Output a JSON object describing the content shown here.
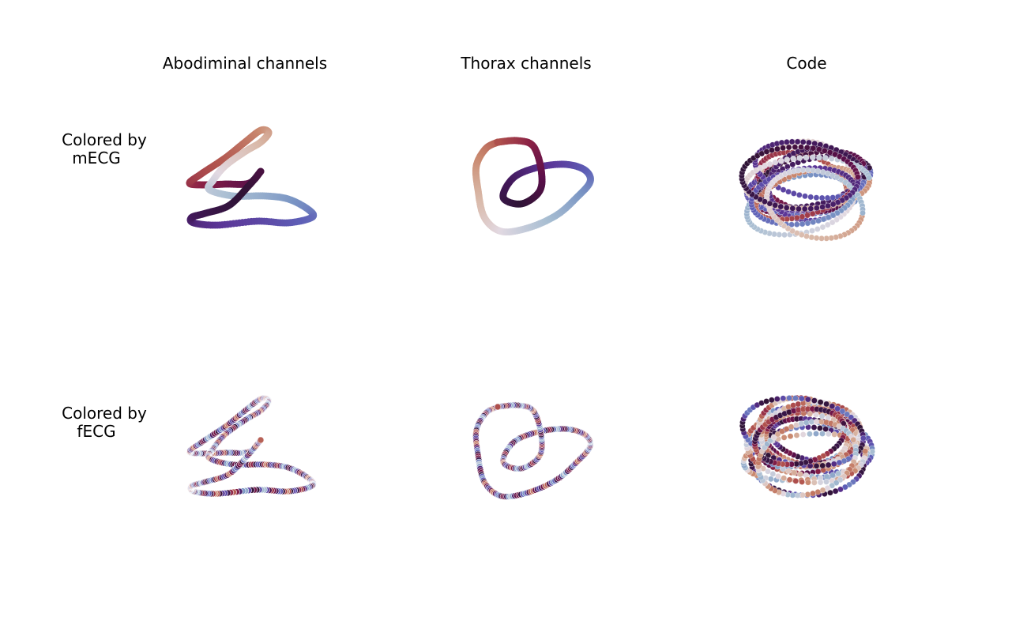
{
  "column_titles": [
    "Abodiminal channels",
    "Thorax channels",
    "Code"
  ],
  "row_labels": [
    {
      "line1": "Colored by",
      "line2": "mECG"
    },
    {
      "line1": "Colored by",
      "line2": "fECG"
    }
  ],
  "colormap": {
    "name": "twilight",
    "stops": [
      "#e2d9e2",
      "#a8bed2",
      "#7a95c4",
      "#5e5fb7",
      "#5b3596",
      "#411757",
      "#2f1436",
      "#5b0f4a",
      "#8a2045",
      "#b0524d",
      "#c9886e",
      "#d9b8a7",
      "#e2d9e2"
    ]
  },
  "chart_data": [
    {
      "type": "scatter",
      "panel": "abdominal-mecg",
      "shape": "figure-eight trajectory",
      "coloring": "smooth"
    },
    {
      "type": "scatter",
      "panel": "thorax-mecg",
      "shape": "double loop",
      "coloring": "smooth"
    },
    {
      "type": "scatter",
      "panel": "code-mecg",
      "shape": "tangled bundle",
      "coloring": "smooth"
    },
    {
      "type": "scatter",
      "panel": "abdominal-fecg",
      "shape": "figure-eight trajectory",
      "coloring": "oscillating"
    },
    {
      "type": "scatter",
      "panel": "thorax-fecg",
      "shape": "double loop",
      "coloring": "oscillating"
    },
    {
      "type": "scatter",
      "panel": "code-fecg",
      "shape": "tangled bundle",
      "coloring": "oscillating"
    }
  ]
}
